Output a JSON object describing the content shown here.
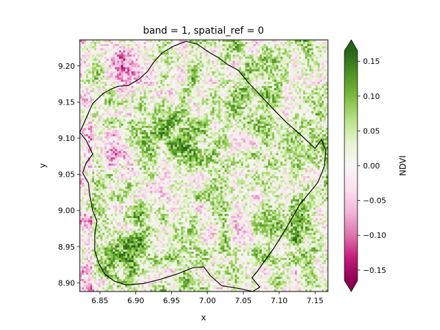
{
  "chart_data": {
    "type": "heatmap",
    "title": "band = 1, spatial_ref = 0",
    "xlabel": "x",
    "ylabel": "y",
    "xlim": [
      6.822,
      7.168
    ],
    "ylim": [
      8.888,
      9.236
    ],
    "x_ticks": [
      "6.85",
      "6.90",
      "6.95",
      "7.00",
      "7.05",
      "7.10",
      "7.15"
    ],
    "y_ticks": [
      "8.90",
      "8.95",
      "9.00",
      "9.05",
      "9.10",
      "9.15",
      "9.20"
    ],
    "colorbar": {
      "label": "NDVI",
      "vmin": -0.165,
      "vmax": 0.165,
      "extend": "both",
      "colormap": "PiYG",
      "ticks": [
        "−0.15",
        "−0.10",
        "−0.05",
        "0.00",
        "0.05",
        "0.10",
        "0.15"
      ],
      "colors": [
        "#8e0152",
        "#c51b7d",
        "#de77ae",
        "#f1b6da",
        "#fde0ef",
        "#f7f7f7",
        "#e6f5d0",
        "#b8e186",
        "#7fbc41",
        "#4d9221",
        "#276419"
      ]
    },
    "grid_resolution": [
      120,
      120
    ],
    "pixel_values": "dense raster — pink (negative NDVI) concentrated in the upper-left and along the left and bottom-left edges, dark green (positive NDVI) dominating the center, lower-left and right side of the boundary",
    "boundary_outline": {
      "color": "#000000",
      "vertices": [
        [
          6.822,
          9.108
        ],
        [
          6.832,
          9.13
        ],
        [
          6.84,
          9.148
        ],
        [
          6.855,
          9.162
        ],
        [
          6.866,
          9.168
        ],
        [
          6.876,
          9.172
        ],
        [
          6.89,
          9.173
        ],
        [
          6.905,
          9.182
        ],
        [
          6.916,
          9.192
        ],
        [
          6.925,
          9.205
        ],
        [
          6.937,
          9.218
        ],
        [
          6.952,
          9.227
        ],
        [
          6.97,
          9.234
        ],
        [
          6.986,
          9.23
        ],
        [
          7.002,
          9.219
        ],
        [
          7.016,
          9.211
        ],
        [
          7.028,
          9.202
        ],
        [
          7.043,
          9.194
        ],
        [
          7.058,
          9.176
        ],
        [
          7.076,
          9.157
        ],
        [
          7.093,
          9.139
        ],
        [
          7.11,
          9.122
        ],
        [
          7.132,
          9.103
        ],
        [
          7.15,
          9.086
        ],
        [
          7.159,
          9.098
        ],
        [
          7.165,
          9.083
        ],
        [
          7.163,
          9.061
        ],
        [
          7.154,
          9.039
        ],
        [
          7.141,
          9.023
        ],
        [
          7.129,
          9.009
        ],
        [
          7.116,
          8.986
        ],
        [
          7.104,
          8.966
        ],
        [
          7.092,
          8.947
        ],
        [
          7.079,
          8.929
        ],
        [
          7.068,
          8.914
        ],
        [
          7.062,
          8.907
        ],
        [
          7.073,
          8.894
        ],
        [
          7.063,
          8.888
        ],
        [
          7.045,
          8.892
        ],
        [
          7.02,
          8.896
        ],
        [
          7.004,
          8.91
        ],
        [
          6.995,
          8.922
        ],
        [
          6.98,
          8.921
        ],
        [
          6.96,
          8.913
        ],
        [
          6.935,
          8.905
        ],
        [
          6.911,
          8.899
        ],
        [
          6.887,
          8.897
        ],
        [
          6.871,
          8.902
        ],
        [
          6.857,
          8.912
        ],
        [
          6.848,
          8.928
        ],
        [
          6.843,
          8.945
        ],
        [
          6.843,
          8.968
        ],
        [
          6.846,
          8.985
        ],
        [
          6.84,
          9.0
        ],
        [
          6.836,
          9.021
        ],
        [
          6.834,
          9.038
        ],
        [
          6.826,
          9.052
        ],
        [
          6.831,
          9.066
        ],
        [
          6.84,
          9.078
        ],
        [
          6.831,
          9.097
        ],
        [
          6.822,
          9.108
        ]
      ]
    }
  }
}
